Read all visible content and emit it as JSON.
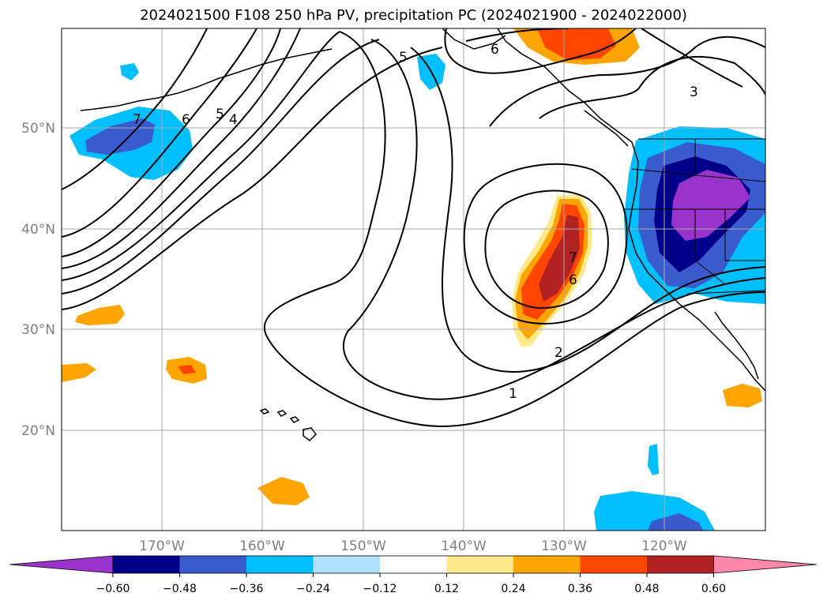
{
  "title": "2024021500 F108 250 hPa PV, precipitation PC (2024021900 - 2024022000)",
  "colors": {
    "neg_060": "#9933cc",
    "neg_048": "#00008b",
    "neg_036": "#3a5bcd",
    "neg_024": "#00bfff",
    "neg_012": "#b0e2ff",
    "zero": "#ffffff",
    "pos_012": "#ffe98a",
    "pos_024": "#ffa500",
    "pos_036": "#ff4500",
    "pos_048": "#b22222",
    "pos_060": "#ff88aa",
    "grid": "#a9a9a9",
    "contour": "#000000",
    "coast": "#000000"
  },
  "lat_labels": [
    "50°N",
    "40°N",
    "30°N",
    "20°N"
  ],
  "lon_labels": [
    "170°W",
    "160°W",
    "150°W",
    "140°W",
    "130°W",
    "120°W"
  ],
  "colorbar_labels": [
    "−0.60",
    "−0.48",
    "−0.36",
    "−0.24",
    "−0.12",
    "0.12",
    "0.24",
    "0.36",
    "0.48",
    "0.60"
  ],
  "contour_labels": [
    "7",
    "6",
    "5",
    "4",
    "5",
    "6",
    "3",
    "7",
    "6",
    "2",
    "1"
  ]
}
